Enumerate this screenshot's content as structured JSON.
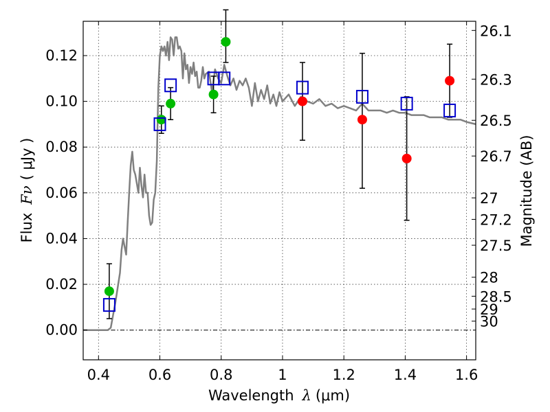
{
  "chart_data": {
    "type": "scatter",
    "xlabel": "Wavelength",
    "xlabel_symbol": "λ",
    "xlabel_unit": "(μm)",
    "ylabel": "Flux",
    "ylabel_symbol": "Fν",
    "ylabel_unit": "( μJy )",
    "ylabel_right": "Magnitude (AB)",
    "xlim": [
      0.35,
      1.63
    ],
    "ylim": [
      -0.013,
      0.135
    ],
    "x_ticks": [
      0.4,
      0.6,
      0.8,
      1.0,
      1.2,
      1.4,
      1.6
    ],
    "x_tick_labels": [
      "0.4",
      "0.6",
      "0.8",
      "1",
      "1.2",
      "1.4",
      "1.6"
    ],
    "y_ticks": [
      0.0,
      0.02,
      0.04,
      0.06,
      0.08,
      0.1,
      0.12
    ],
    "y_tick_labels": [
      "0.00",
      "0.02",
      "0.04",
      "0.06",
      "0.08",
      "0.10",
      "0.12"
    ],
    "right_ticks": [
      {
        "flux": 0.131,
        "label": "26.1"
      },
      {
        "flux": 0.1097,
        "label": "26.3"
      },
      {
        "flux": 0.0917,
        "label": "26.5"
      },
      {
        "flux": 0.0761,
        "label": "26.7"
      },
      {
        "flux": 0.0578,
        "label": "27"
      },
      {
        "flux": 0.0484,
        "label": "27.2"
      },
      {
        "flux": 0.0371,
        "label": "27.5"
      },
      {
        "flux": 0.0231,
        "label": "28"
      },
      {
        "flux": 0.0148,
        "label": "28.5"
      },
      {
        "flux": 0.0092,
        "label": "29"
      },
      {
        "flux": 0.0039,
        "label": "30"
      }
    ],
    "grid": true,
    "colors": {
      "model": "#808080",
      "green": "#00bb00",
      "red": "#ff0000",
      "square": "#0000cc",
      "errorbar": "#000000",
      "zero_line": "#000000"
    },
    "series": [
      {
        "name": "model spectrum",
        "kind": "line",
        "x": [
          0.35,
          0.43,
          0.44,
          0.455,
          0.47,
          0.475,
          0.48,
          0.49,
          0.495,
          0.5,
          0.505,
          0.51,
          0.515,
          0.52,
          0.525,
          0.53,
          0.535,
          0.54,
          0.545,
          0.55,
          0.555,
          0.56,
          0.565,
          0.57,
          0.575,
          0.58,
          0.585,
          0.59,
          0.595,
          0.6,
          0.605,
          0.61,
          0.615,
          0.62,
          0.625,
          0.63,
          0.635,
          0.64,
          0.645,
          0.65,
          0.655,
          0.66,
          0.665,
          0.67,
          0.675,
          0.68,
          0.685,
          0.69,
          0.695,
          0.7,
          0.705,
          0.71,
          0.715,
          0.72,
          0.725,
          0.73,
          0.735,
          0.74,
          0.745,
          0.75,
          0.76,
          0.77,
          0.78,
          0.79,
          0.8,
          0.81,
          0.82,
          0.83,
          0.84,
          0.85,
          0.86,
          0.87,
          0.88,
          0.89,
          0.9,
          0.91,
          0.92,
          0.93,
          0.94,
          0.95,
          0.96,
          0.97,
          0.98,
          0.99,
          1.0,
          1.02,
          1.04,
          1.06,
          1.08,
          1.1,
          1.12,
          1.14,
          1.16,
          1.18,
          1.2,
          1.22,
          1.24,
          1.26,
          1.28,
          1.3,
          1.32,
          1.34,
          1.36,
          1.38,
          1.4,
          1.42,
          1.44,
          1.46,
          1.48,
          1.5,
          1.52,
          1.54,
          1.56,
          1.58,
          1.6,
          1.63
        ],
        "y": [
          0.0,
          0.0,
          0.001,
          0.012,
          0.025,
          0.035,
          0.04,
          0.033,
          0.047,
          0.06,
          0.072,
          0.078,
          0.07,
          0.068,
          0.064,
          0.06,
          0.071,
          0.063,
          0.058,
          0.068,
          0.06,
          0.06,
          0.05,
          0.046,
          0.047,
          0.057,
          0.06,
          0.074,
          0.106,
          0.12,
          0.124,
          0.122,
          0.124,
          0.12,
          0.126,
          0.118,
          0.128,
          0.127,
          0.12,
          0.128,
          0.128,
          0.123,
          0.124,
          0.122,
          0.11,
          0.121,
          0.114,
          0.116,
          0.108,
          0.115,
          0.112,
          0.117,
          0.111,
          0.113,
          0.106,
          0.106,
          0.109,
          0.115,
          0.11,
          0.112,
          0.113,
          0.104,
          0.114,
          0.11,
          0.108,
          0.116,
          0.111,
          0.107,
          0.11,
          0.105,
          0.109,
          0.107,
          0.11,
          0.106,
          0.098,
          0.108,
          0.1,
          0.105,
          0.101,
          0.107,
          0.099,
          0.103,
          0.098,
          0.104,
          0.1,
          0.103,
          0.098,
          0.102,
          0.1,
          0.099,
          0.101,
          0.098,
          0.099,
          0.097,
          0.098,
          0.097,
          0.096,
          0.099,
          0.096,
          0.096,
          0.096,
          0.095,
          0.096,
          0.095,
          0.095,
          0.094,
          0.094,
          0.094,
          0.093,
          0.093,
          0.093,
          0.092,
          0.092,
          0.092,
          0.091,
          0.09
        ]
      },
      {
        "name": "green points",
        "kind": "points",
        "marker": "circle",
        "x": [
          0.435,
          0.605,
          0.635,
          0.775,
          0.815
        ],
        "y": [
          0.017,
          0.092,
          0.099,
          0.103,
          0.126
        ],
        "yerr_low": [
          0.012,
          0.006,
          0.007,
          0.008,
          0.009
        ],
        "yerr_high": [
          0.012,
          0.006,
          0.007,
          0.008,
          0.014
        ]
      },
      {
        "name": "red points",
        "kind": "points",
        "marker": "circle",
        "x": [
          1.065,
          1.26,
          1.405,
          1.545
        ],
        "y": [
          0.1,
          0.092,
          0.075,
          0.109
        ],
        "yerr_low": [
          0.017,
          0.03,
          0.027,
          0.016
        ],
        "yerr_high": [
          0.017,
          0.029,
          0.027,
          0.016
        ]
      },
      {
        "name": "model band fluxes",
        "kind": "points",
        "marker": "square",
        "x": [
          0.435,
          0.6,
          0.635,
          0.775,
          0.81,
          1.065,
          1.26,
          1.405,
          1.545
        ],
        "y": [
          0.011,
          0.09,
          0.107,
          0.11,
          0.11,
          0.106,
          0.102,
          0.099,
          0.096
        ]
      }
    ]
  }
}
